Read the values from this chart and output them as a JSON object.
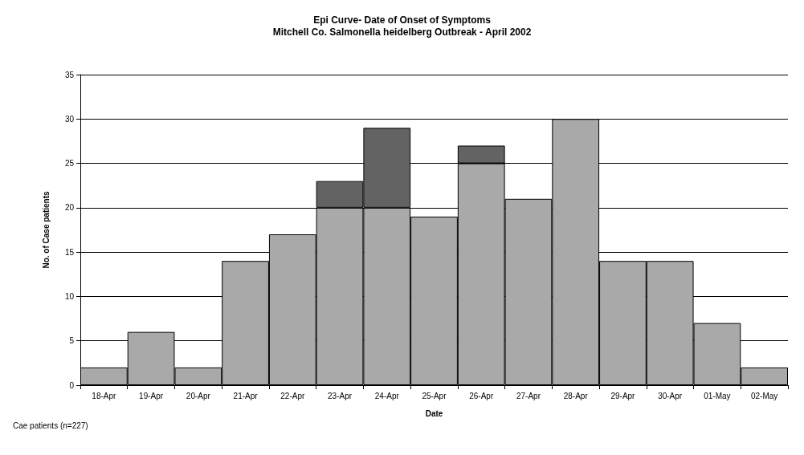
{
  "chart_data": {
    "type": "bar",
    "title": "Epi Curve- Date of Onset of Symptoms",
    "subtitle": "Mitchell Co. Salmonella heidelberg Outbreak - April 2002",
    "xlabel": "Date",
    "ylabel": "No. of Case patients",
    "categories": [
      "18-Apr",
      "19-Apr",
      "20-Apr",
      "21-Apr",
      "22-Apr",
      "23-Apr",
      "24-Apr",
      "25-Apr",
      "26-Apr",
      "27-Apr",
      "28-Apr",
      "29-Apr",
      "30-Apr",
      "01-May",
      "02-May"
    ],
    "stacked": true,
    "series": [
      {
        "color": "#a9a9a9",
        "values": [
          2,
          6,
          2,
          14,
          17,
          20,
          20,
          19,
          25,
          21,
          30,
          14,
          14,
          7,
          2
        ]
      },
      {
        "color": "#636363",
        "values": [
          null,
          null,
          null,
          null,
          null,
          3,
          9,
          null,
          2,
          null,
          null,
          null,
          null,
          null,
          null
        ]
      }
    ],
    "ylim": [
      0,
      35
    ],
    "yticks": [
      0,
      5,
      10,
      15,
      20,
      25,
      30,
      35
    ],
    "grid": "y",
    "annotations": [
      "Cae patients (n=227)"
    ]
  }
}
